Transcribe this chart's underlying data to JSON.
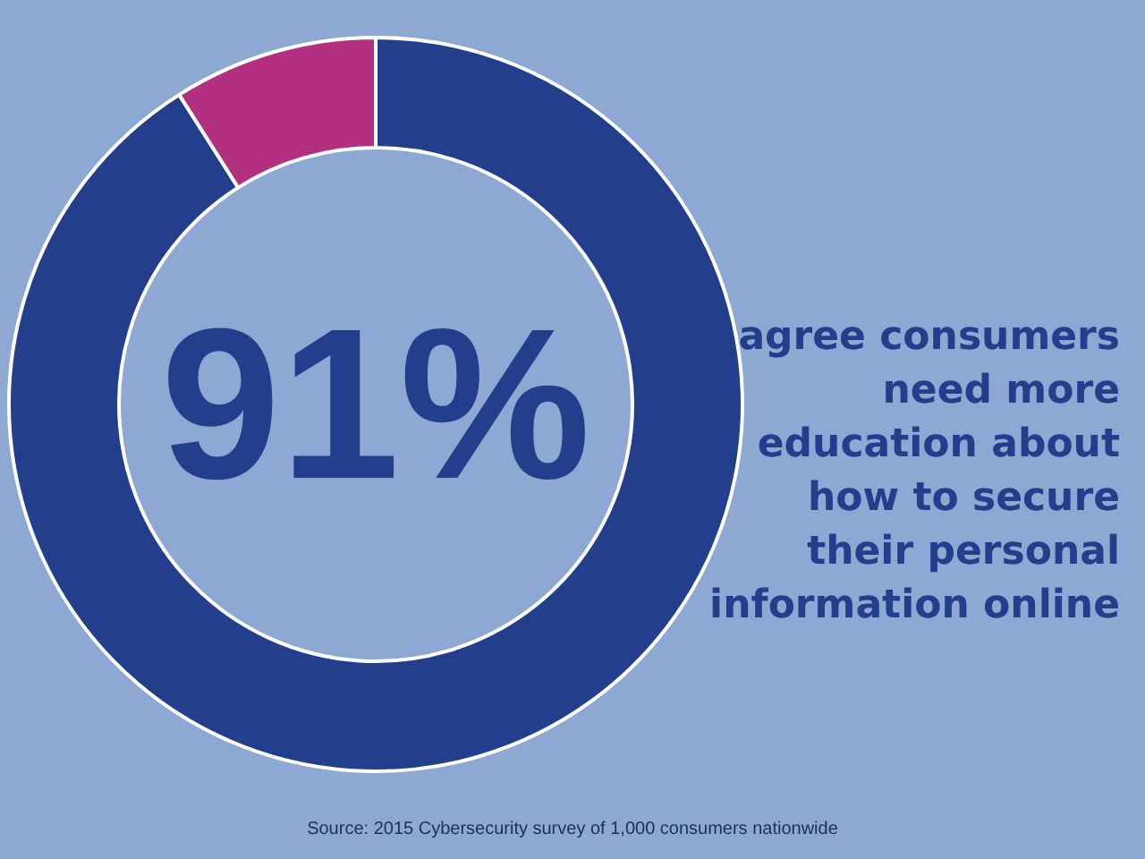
{
  "chart_data": {
    "type": "donut",
    "title": "agree consumers need more education about how to secure their personal information online",
    "categories": [
      null,
      null
    ],
    "values": [
      91,
      9
    ],
    "colors": [
      "#233f8c",
      "#b32f7f"
    ],
    "value_labels": [
      "91%",
      null
    ],
    "annotations": [
      "Source: 2015 Cybersecurity survey of 1,000 consumers nationwide"
    ],
    "legend": false
  }
}
